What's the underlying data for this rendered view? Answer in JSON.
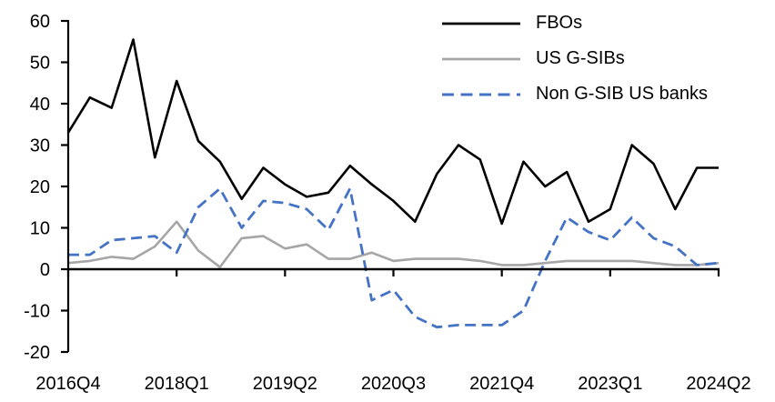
{
  "page": {
    "background_color": "#ffffff"
  },
  "chart_data": {
    "type": "line",
    "title": "",
    "xlabel": "",
    "ylabel": "",
    "grid": false,
    "legend_position": "top-right",
    "ylim": [
      -20,
      60
    ],
    "y_tick_step": 10,
    "y_tick_values": [
      60,
      50,
      40,
      30,
      20,
      10,
      0,
      -10,
      -20
    ],
    "y_tick_labels": [
      "60",
      "50",
      "40",
      "30",
      "20",
      "10",
      "0",
      "-10",
      "-20"
    ],
    "categories": [
      "2016Q4",
      "2017Q1",
      "2017Q2",
      "2017Q3",
      "2017Q4",
      "2018Q1",
      "2018Q2",
      "2018Q3",
      "2018Q4",
      "2019Q1",
      "2019Q2",
      "2019Q3",
      "2019Q4",
      "2020Q1",
      "2020Q2",
      "2020Q3",
      "2020Q4",
      "2021Q1",
      "2021Q2",
      "2021Q3",
      "2021Q4",
      "2022Q1",
      "2022Q2",
      "2022Q3",
      "2022Q4",
      "2023Q1",
      "2023Q2",
      "2023Q3",
      "2023Q4",
      "2024Q1",
      "2024Q2"
    ],
    "x_axis_tick_labels": [
      "2016Q4",
      "2018Q1",
      "2019Q2",
      "2020Q3",
      "2021Q4",
      "2023Q1",
      "2024Q2"
    ],
    "x_axis_tick_indices": [
      0,
      5,
      10,
      15,
      20,
      25,
      30
    ],
    "axis_color": "#000000",
    "series": [
      {
        "name": "FBOs",
        "color": "#000000",
        "style": "solid",
        "values": [
          33,
          41.5,
          39,
          55.5,
          27,
          45.5,
          31,
          26,
          17,
          24.5,
          20.5,
          17.5,
          18.5,
          25,
          20.5,
          16.5,
          11.5,
          23,
          30,
          26.5,
          11,
          26,
          20,
          23.5,
          11.5,
          14.5,
          30,
          25.5,
          14.5,
          24.5,
          24.5
        ]
      },
      {
        "name": "US G-SIBs",
        "color": "#a6a6a6",
        "style": "solid",
        "values": [
          1.5,
          2,
          3,
          2.5,
          5.5,
          11.5,
          4.5,
          0.5,
          7.5,
          8,
          5,
          6,
          2.5,
          2.5,
          4,
          2,
          2.5,
          2.5,
          2.5,
          2,
          1,
          1,
          1.5,
          2,
          2,
          2,
          2,
          1.5,
          1,
          1,
          1.5
        ]
      },
      {
        "name": "Non G-SIB US banks",
        "color": "#4472c4",
        "style": "dashed",
        "values": [
          3.5,
          3.5,
          7,
          7.5,
          8,
          4,
          15,
          19.5,
          10,
          16.5,
          16,
          14.5,
          9.5,
          19.5,
          -7.5,
          -5,
          -11.5,
          -14,
          -13.5,
          -13.5,
          -13.5,
          -10,
          2,
          12.5,
          9,
          7,
          12.5,
          7.5,
          5.5,
          1,
          1.5
        ]
      }
    ]
  }
}
